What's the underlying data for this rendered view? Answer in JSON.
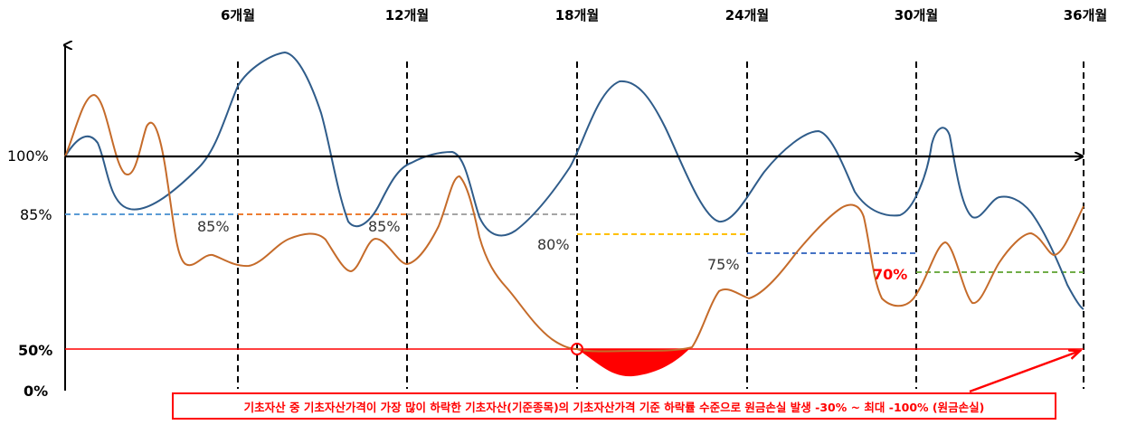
{
  "period_labels": [
    "6개월",
    "12개월",
    "18개월",
    "24개월",
    "30개월",
    "36개월"
  ],
  "y_labels": {
    "level_100": "100%",
    "level_85": "85%",
    "level_50": "50%",
    "level_0": "0%"
  },
  "barrier_labels": [
    "85%",
    "85%",
    "80%",
    "75%",
    "70%"
  ],
  "notice_text": "기초자산 중 기초자산가격이 가장 많이 하락한 기초자산(기준종목)의 기초자산가격 기준 하락률 수준으로 원금손실 발생 -30% ~ 최대 -100% (원금손실)",
  "colors": {
    "blue_line": "#2f5c8a",
    "orange_line": "#c56b2a",
    "axis": "#000000",
    "loss_fill": "#ff0000",
    "knock_in_line": "#ff0000",
    "barrier_1": "#5b9bd5",
    "barrier_2": "#ed7d31",
    "barrier_3": "#a5a5a5",
    "barrier_4": "#ffc000",
    "barrier_5": "#4472c4",
    "barrier_6": "#70ad47"
  }
}
